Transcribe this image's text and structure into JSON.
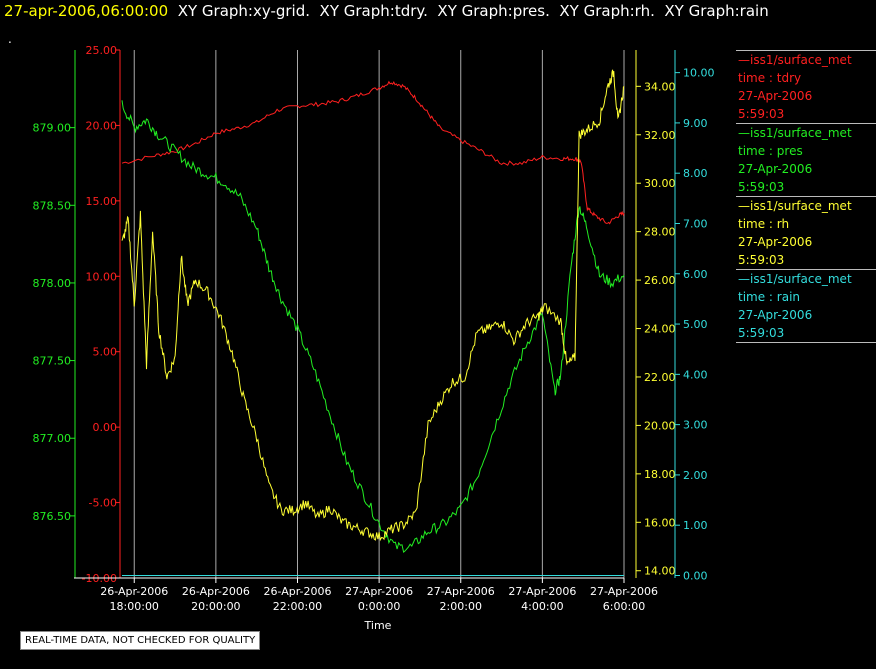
{
  "header": {
    "timestamp": "27-apr-2006,06:00:00",
    "graphs": "  XY Graph:xy-grid.  XY Graph:tdry.  XY Graph:pres.  XY Graph:rh.  XY Graph:rain",
    "dot": "."
  },
  "quality_notice": "REAL-TIME DATA, NOT CHECKED FOR QUALITY",
  "legend": [
    {
      "name": "iss1/surface_met",
      "field": "time : tdry",
      "date": "27-Apr-2006",
      "time": "5:59:03",
      "color": "#ff2020"
    },
    {
      "name": "iss1/surface_met",
      "field": "time : pres",
      "date": "27-Apr-2006",
      "time": "5:59:03",
      "color": "#22ee22"
    },
    {
      "name": "iss1/surface_met",
      "field": "time : rh",
      "date": "27-Apr-2006",
      "time": "5:59:03",
      "color": "#ffff33"
    },
    {
      "name": "iss1/surface_met",
      "field": "time : rain",
      "date": "27-Apr-2006",
      "time": "5:59:03",
      "color": "#33dddd"
    }
  ],
  "chart_data": {
    "type": "line",
    "xlabel": "Time",
    "x_ticks": [
      {
        "d": "26-Apr-2006",
        "t": "18:00:00"
      },
      {
        "d": "26-Apr-2006",
        "t": "20:00:00"
      },
      {
        "d": "26-Apr-2006",
        "t": "22:00:00"
      },
      {
        "d": "27-Apr-2006",
        "t": "0:00:00"
      },
      {
        "d": "27-Apr-2006",
        "t": "2:00:00"
      },
      {
        "d": "27-Apr-2006",
        "t": "4:00:00"
      },
      {
        "d": "27-Apr-2006",
        "t": "6:00:00"
      }
    ],
    "xlim_hours": [
      -6.3,
      6.0
    ],
    "grid": "vertical",
    "axes": {
      "tdry": {
        "ylim": [
          -10,
          25
        ],
        "ticks": [
          "-10.00",
          "-5.00",
          "0.00",
          "5.00",
          "10.00",
          "15.00",
          "20.00",
          "25.00"
        ],
        "color": "#ff2020"
      },
      "pres": {
        "ylim": [
          876.1,
          879.5
        ],
        "ticks": [
          "876.50",
          "877.00",
          "877.50",
          "878.00",
          "878.50",
          "879.00"
        ],
        "color": "#22ee22"
      },
      "rh": {
        "ylim": [
          13.7,
          35.5
        ],
        "ticks": [
          "14.00",
          "16.00",
          "18.00",
          "20.00",
          "22.00",
          "24.00",
          "26.00",
          "28.00",
          "30.00",
          "32.00",
          "34.00"
        ],
        "color": "#ffff33"
      },
      "rain": {
        "ylim": [
          -0.05,
          10.45
        ],
        "ticks": [
          "0.00",
          "1.00",
          "2.00",
          "3.00",
          "4.00",
          "5.00",
          "6.00",
          "7.00",
          "8.00",
          "9.00",
          "10.00"
        ],
        "color": "#33dddd"
      }
    },
    "series": [
      {
        "name": "tdry",
        "axis": "tdry",
        "x": [
          -6.3,
          -5.5,
          -5.0,
          -4.5,
          -4.0,
          -3.5,
          -3.0,
          -2.5,
          -2.0,
          -1.5,
          -1.0,
          -0.5,
          0,
          0.3,
          0.6,
          0.9,
          1.2,
          1.5,
          2.0,
          2.5,
          3.0,
          3.5,
          4.0,
          4.5,
          4.8,
          4.95,
          5.1,
          5.3,
          5.6,
          5.85,
          6.0
        ],
        "y": [
          17.5,
          18.0,
          18.3,
          18.8,
          19.5,
          19.8,
          20.2,
          21.0,
          21.3,
          21.4,
          21.6,
          22.0,
          22.5,
          22.9,
          22.6,
          21.8,
          20.8,
          19.8,
          19.0,
          18.3,
          17.5,
          17.5,
          17.9,
          17.8,
          17.8,
          17.6,
          14.5,
          14.0,
          13.5,
          14.0,
          14.2
        ]
      },
      {
        "name": "pres",
        "axis": "pres",
        "x": [
          -6.3,
          -6.0,
          -5.7,
          -5.4,
          -5.0,
          -4.6,
          -4.2,
          -3.8,
          -3.4,
          -3.0,
          -2.7,
          -2.4,
          -2.0,
          -1.6,
          -1.2,
          -0.8,
          -0.4,
          0,
          0.4,
          0.8,
          1.2,
          1.6,
          2.0,
          2.4,
          2.8,
          3.2,
          3.6,
          4.0,
          4.3,
          4.45,
          4.7,
          4.9,
          5.1,
          5.4,
          5.7,
          6.0
        ],
        "y": [
          879.15,
          879.0,
          879.05,
          878.95,
          878.85,
          878.75,
          878.7,
          878.65,
          878.55,
          878.35,
          878.1,
          877.9,
          877.7,
          877.45,
          877.15,
          876.85,
          876.65,
          876.45,
          876.3,
          876.3,
          876.4,
          876.45,
          876.55,
          876.75,
          877.05,
          877.35,
          877.6,
          877.8,
          877.3,
          877.4,
          878.1,
          878.5,
          878.35,
          878.05,
          878.0,
          878.05
        ]
      },
      {
        "name": "rh",
        "axis": "rh",
        "x": [
          -6.3,
          -6.15,
          -6.0,
          -5.85,
          -5.7,
          -5.55,
          -5.4,
          -5.2,
          -5.0,
          -4.85,
          -4.7,
          -4.5,
          -4.2,
          -3.9,
          -3.6,
          -3.3,
          -3.0,
          -2.7,
          -2.4,
          -2.1,
          -1.8,
          -1.5,
          -1.2,
          -0.9,
          -0.6,
          -0.3,
          0,
          0.3,
          0.6,
          0.9,
          1.2,
          1.5,
          1.8,
          2.1,
          2.4,
          2.7,
          3.0,
          3.3,
          3.6,
          3.9,
          4.05,
          4.45,
          4.6,
          4.8,
          4.9,
          5.1,
          5.4,
          5.6,
          5.75,
          5.85,
          6.0
        ],
        "y": [
          27.5,
          28.5,
          25.0,
          28.7,
          22.5,
          28.0,
          24.0,
          22.0,
          22.8,
          27.0,
          25.0,
          26.0,
          25.5,
          24.5,
          23.0,
          21.0,
          19.5,
          17.5,
          16.5,
          16.5,
          16.8,
          16.2,
          16.6,
          16.0,
          15.8,
          15.6,
          15.4,
          15.7,
          15.9,
          16.4,
          20.0,
          21.0,
          21.8,
          22.0,
          23.8,
          24.0,
          24.3,
          23.5,
          24.2,
          24.5,
          24.9,
          24.3,
          22.5,
          22.8,
          32.0,
          32.2,
          32.6,
          34.0,
          34.6,
          32.5,
          34.0
        ]
      },
      {
        "name": "rain",
        "axis": "rain",
        "x": [
          -6.3,
          6.0
        ],
        "y": [
          0.0,
          0.0
        ]
      }
    ]
  }
}
